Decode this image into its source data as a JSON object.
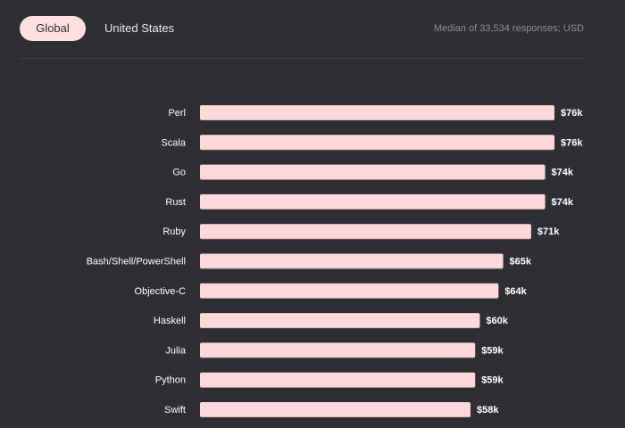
{
  "tabs": {
    "active_label": "Global",
    "inactive_label": "United States"
  },
  "note": "Median of 33,534 responses; USD",
  "colors": {
    "background": "#2d2f33",
    "bar": "#ffd9da",
    "bar_shadow": "#e0b3b5",
    "label_text": "#ffffff",
    "value_text": "#ffffff"
  },
  "chart_data": {
    "type": "bar",
    "orientation": "horizontal",
    "categories": [
      "Perl",
      "Scala",
      "Go",
      "Rust",
      "Ruby",
      "Bash/Shell/PowerShell",
      "Objective-C",
      "Haskell",
      "Julia",
      "Python",
      "Swift"
    ],
    "values": [
      76,
      76,
      74,
      74,
      71,
      65,
      64,
      60,
      59,
      59,
      58
    ],
    "value_labels": [
      "$76k",
      "$76k",
      "$74k",
      "$74k",
      "$71k",
      "$65k",
      "$64k",
      "$60k",
      "$59k",
      "$59k",
      "$58k"
    ],
    "unit": "USD (thousands)",
    "title": "",
    "xlabel": "",
    "ylabel": "",
    "grid": false,
    "legend": "none"
  }
}
